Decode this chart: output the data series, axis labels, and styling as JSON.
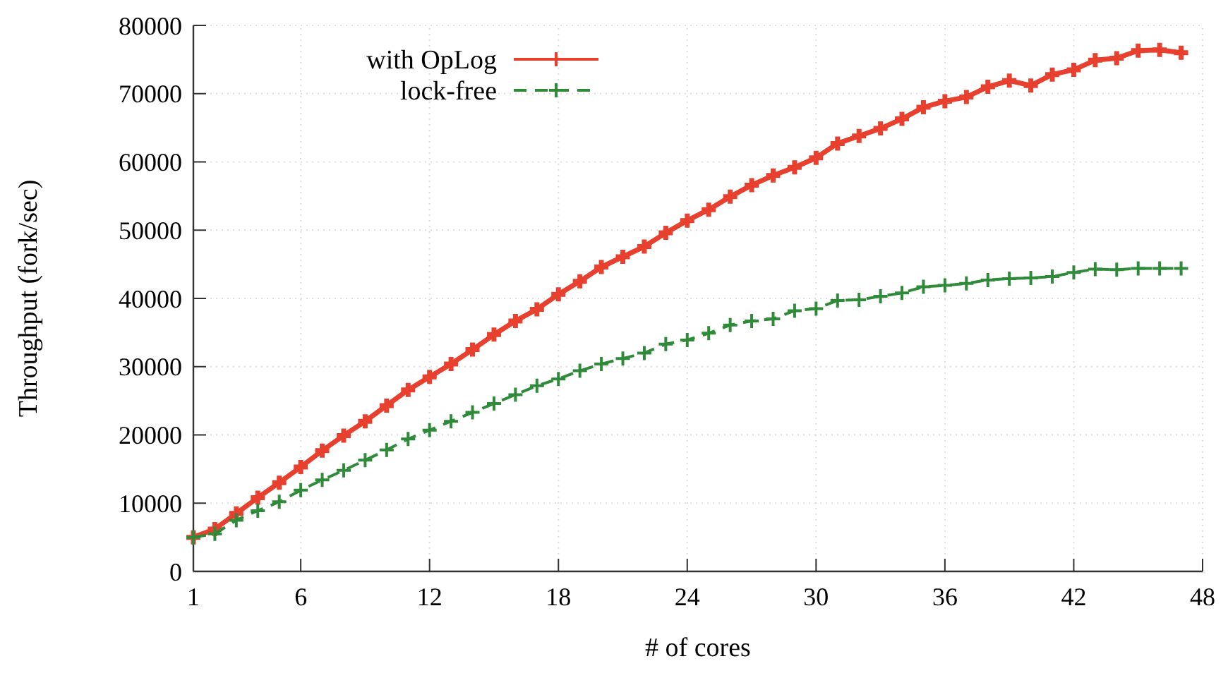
{
  "chart_data": {
    "type": "line",
    "xlabel": "# of cores",
    "ylabel": "Throughput (fork/sec)",
    "xlim": [
      1,
      48
    ],
    "xticks": [
      1,
      6,
      12,
      18,
      24,
      30,
      36,
      42,
      48
    ],
    "ylim": [
      0,
      80000
    ],
    "yticks": [
      0,
      10000,
      20000,
      30000,
      40000,
      50000,
      60000,
      70000,
      80000
    ],
    "grid": true,
    "legend": "top left",
    "marker": "cross",
    "x": [
      1,
      2,
      3,
      4,
      5,
      6,
      7,
      8,
      9,
      10,
      11,
      12,
      13,
      14,
      15,
      16,
      17,
      18,
      19,
      20,
      21,
      22,
      23,
      24,
      25,
      26,
      27,
      28,
      29,
      30,
      31,
      32,
      33,
      34,
      35,
      36,
      37,
      38,
      39,
      40,
      41,
      42,
      43,
      44,
      45,
      46,
      47
    ],
    "series": [
      {
        "name": "with OpLog",
        "color": "#e8402f",
        "line_style": "solid",
        "values": [
          5000,
          6200,
          8500,
          10800,
          13000,
          15300,
          17700,
          19900,
          22000,
          24300,
          26600,
          28500,
          30400,
          32500,
          34700,
          36700,
          38400,
          40600,
          42500,
          44600,
          46100,
          47600,
          49600,
          51400,
          53000,
          54900,
          56600,
          58000,
          59200,
          60600,
          62700,
          63800,
          64900,
          66300,
          68000,
          68900,
          69500,
          71000,
          71900,
          71200,
          72800,
          73500,
          74900,
          75200,
          76300,
          76400,
          76000
        ]
      },
      {
        "name": "lock-free",
        "color": "#2f8a3a",
        "line_style": "dashed",
        "values": [
          5000,
          5500,
          7500,
          8900,
          10200,
          11900,
          13400,
          14800,
          16300,
          17800,
          19400,
          20700,
          22000,
          23300,
          24600,
          25900,
          27200,
          28200,
          29400,
          30400,
          31200,
          32000,
          33300,
          33900,
          34900,
          36100,
          36700,
          37000,
          38200,
          38500,
          39700,
          39800,
          40300,
          40800,
          41700,
          41900,
          42200,
          42700,
          42900,
          43000,
          43200,
          43800,
          44300,
          44200,
          44400,
          44400,
          44400
        ]
      }
    ]
  }
}
